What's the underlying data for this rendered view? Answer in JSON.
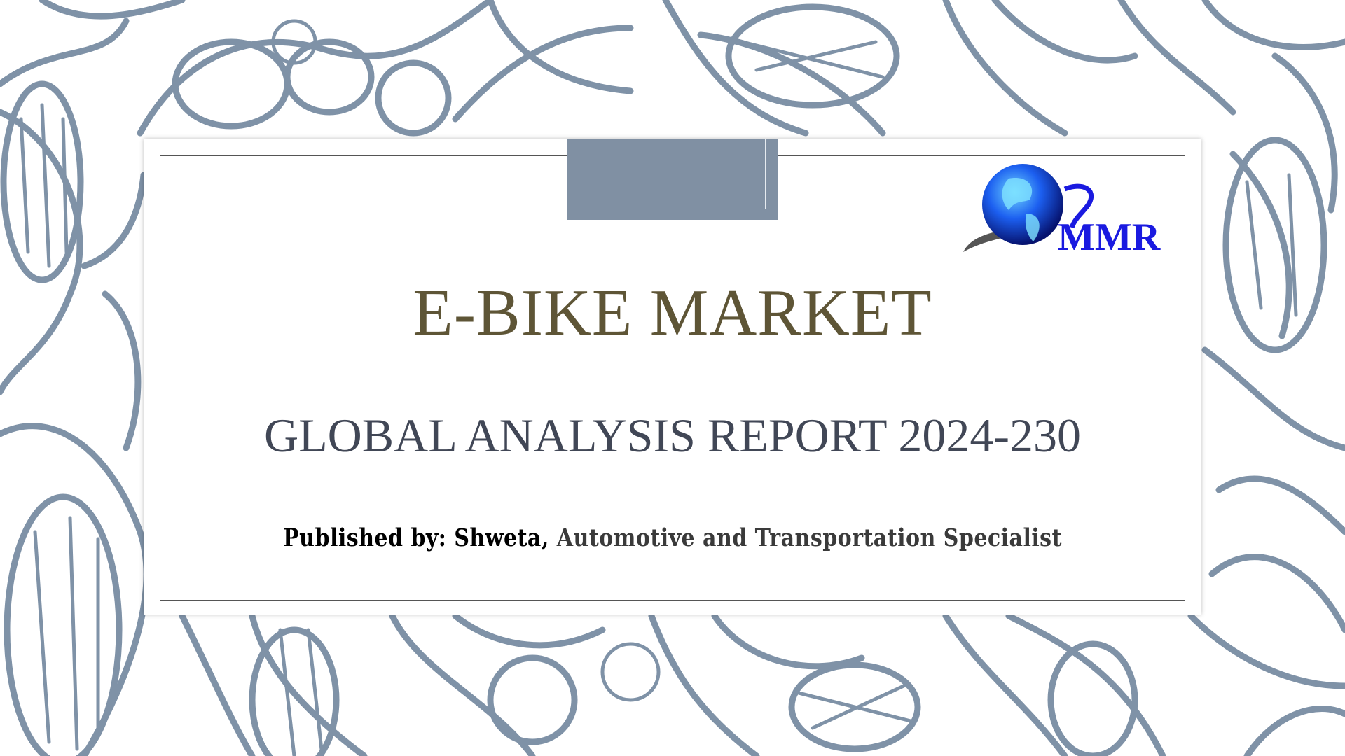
{
  "slide": {
    "title": "E-BIKE MARKET",
    "subtitle": "GLOBAL ANALYSIS REPORT 2024-230",
    "published_prefix": "Published by: Shweta,",
    "published_role": " Automotive and Transportation Specialist",
    "logo_text": "MMR"
  },
  "colors": {
    "pattern": "#7f92a7",
    "title": "#5e5536",
    "subtitle": "#414756",
    "tab": "#8090a3",
    "logo_blue": "#1a1ae0"
  }
}
